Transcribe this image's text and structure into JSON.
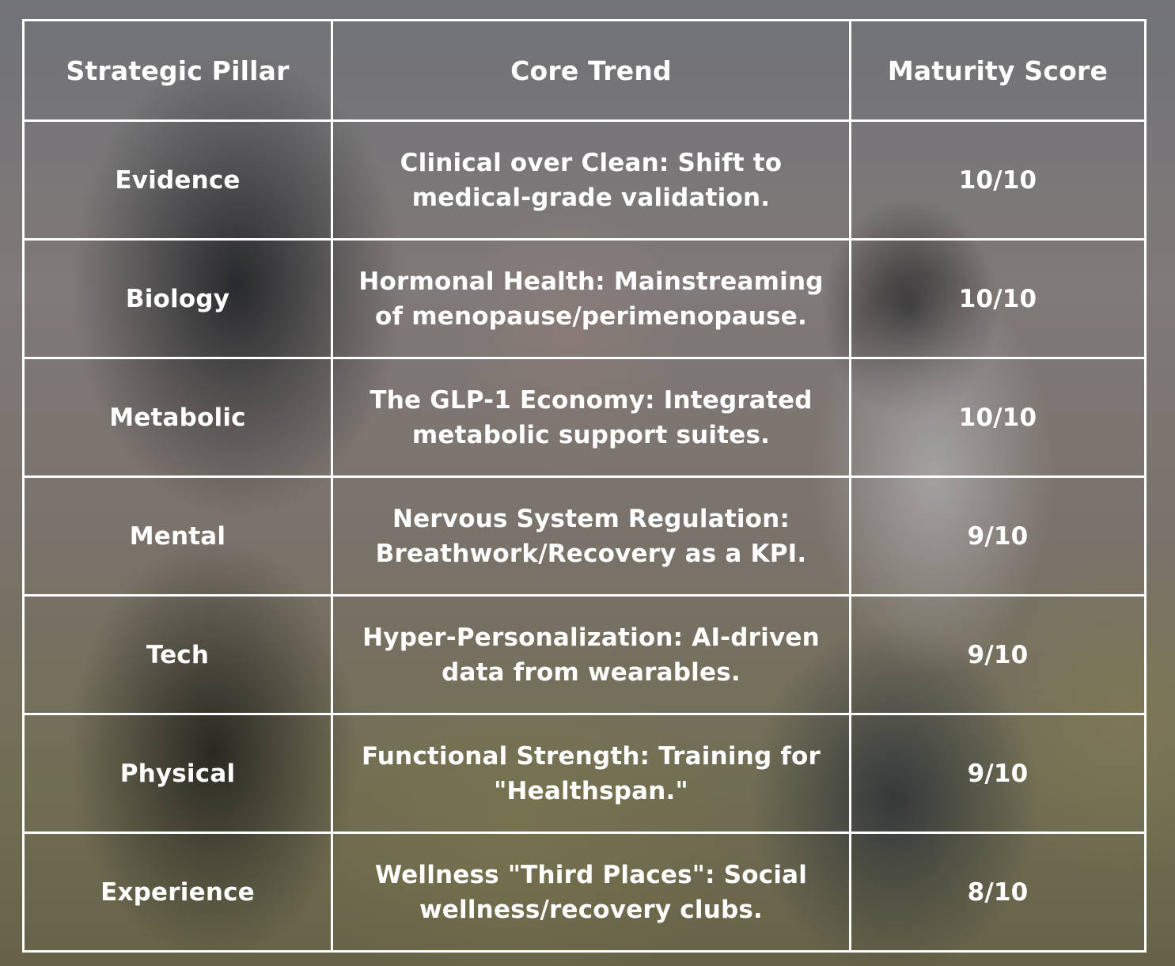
{
  "table": {
    "headers": [
      "Strategic Pillar",
      "Core Trend",
      "Maturity Score"
    ],
    "rows": [
      {
        "pillar": "Evidence",
        "trend": "Clinical over Clean: Shift to medical-grade validation.",
        "score": "10/10"
      },
      {
        "pillar": "Biology",
        "trend": "Hormonal Health: Mainstreaming of menopause/perimenopause.",
        "score": "10/10"
      },
      {
        "pillar": "Metabolic",
        "trend": "The GLP-1 Economy: Integrated metabolic support suites.",
        "score": "10/10"
      },
      {
        "pillar": "Mental",
        "trend": "Nervous System Regulation: Breathwork/Recovery as a KPI.",
        "score": "9/10"
      },
      {
        "pillar": "Tech",
        "trend": "Hyper-Personalization: AI-driven data from wearables.",
        "score": "9/10"
      },
      {
        "pillar": "Physical",
        "trend": "Functional Strength: Training for \"Healthspan.\"",
        "score": "9/10"
      },
      {
        "pillar": "Experience",
        "trend": "Wellness \"Third Places\": Social wellness/recovery clubs.",
        "score": "8/10"
      }
    ]
  }
}
